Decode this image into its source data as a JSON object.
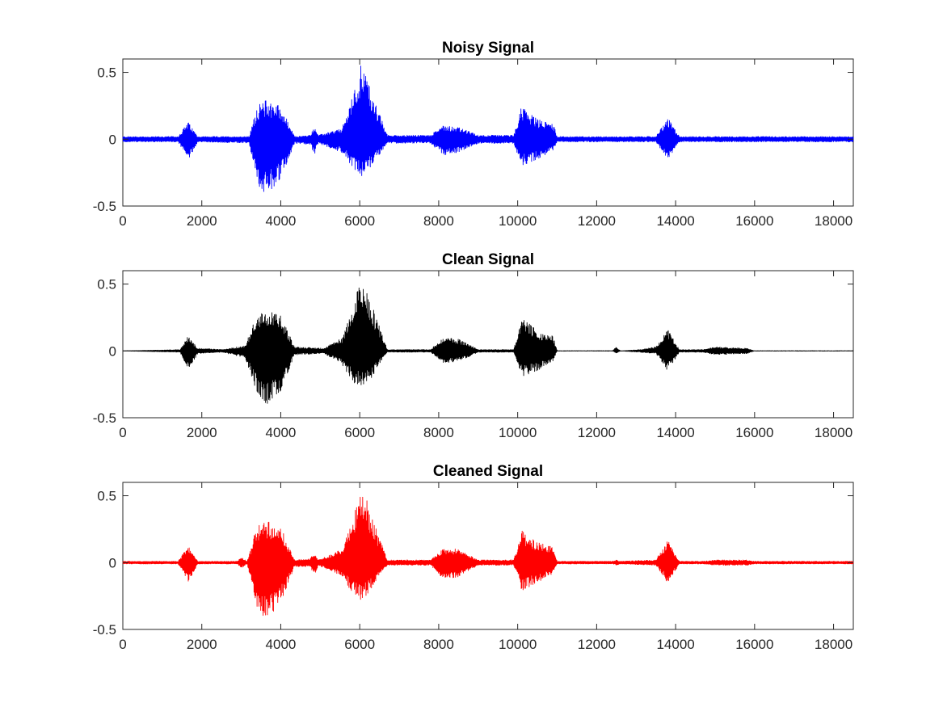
{
  "chart_data": [
    {
      "type": "line",
      "title": "Noisy Signal",
      "color": "#0000ff",
      "xlim": [
        0,
        18500
      ],
      "ylim": [
        -0.5,
        0.6
      ],
      "xticks": [
        0,
        2000,
        4000,
        6000,
        8000,
        10000,
        12000,
        14000,
        16000,
        18000
      ],
      "xtick_labels": [
        "0",
        "2000",
        "4000",
        "6000",
        "8000",
        "10000",
        "12000",
        "14000",
        "16000",
        "18000"
      ],
      "yticks": [
        -0.5,
        0,
        0.5
      ],
      "ytick_labels": [
        "-0.5",
        "0",
        "0.5"
      ],
      "noise_floor": 0.015,
      "envelope": [
        {
          "x": 0,
          "up": 0.02,
          "down": -0.02
        },
        {
          "x": 1400,
          "up": 0.02,
          "down": -0.02
        },
        {
          "x": 1650,
          "up": 0.13,
          "down": -0.16
        },
        {
          "x": 1900,
          "up": 0.02,
          "down": -0.02
        },
        {
          "x": 3200,
          "up": 0.02,
          "down": -0.03
        },
        {
          "x": 3400,
          "up": 0.25,
          "down": -0.33
        },
        {
          "x": 3650,
          "up": 0.3,
          "down": -0.43
        },
        {
          "x": 4000,
          "up": 0.25,
          "down": -0.3
        },
        {
          "x": 4350,
          "up": 0.02,
          "down": -0.03
        },
        {
          "x": 4750,
          "up": 0.03,
          "down": -0.04
        },
        {
          "x": 4850,
          "up": 0.1,
          "down": -0.12
        },
        {
          "x": 4950,
          "up": 0.03,
          "down": -0.03
        },
        {
          "x": 5550,
          "up": 0.08,
          "down": -0.1
        },
        {
          "x": 5850,
          "up": 0.35,
          "down": -0.22
        },
        {
          "x": 6050,
          "up": 0.6,
          "down": -0.28
        },
        {
          "x": 6300,
          "up": 0.35,
          "down": -0.2
        },
        {
          "x": 6700,
          "up": 0.03,
          "down": -0.03
        },
        {
          "x": 7800,
          "up": 0.03,
          "down": -0.03
        },
        {
          "x": 8100,
          "up": 0.11,
          "down": -0.12
        },
        {
          "x": 8500,
          "up": 0.09,
          "down": -0.1
        },
        {
          "x": 9000,
          "up": 0.03,
          "down": -0.03
        },
        {
          "x": 9900,
          "up": 0.03,
          "down": -0.03
        },
        {
          "x": 10100,
          "up": 0.25,
          "down": -0.2
        },
        {
          "x": 10500,
          "up": 0.15,
          "down": -0.15
        },
        {
          "x": 10900,
          "up": 0.12,
          "down": -0.08
        },
        {
          "x": 11000,
          "up": 0.02,
          "down": -0.02
        },
        {
          "x": 13500,
          "up": 0.02,
          "down": -0.02
        },
        {
          "x": 13800,
          "up": 0.16,
          "down": -0.15
        },
        {
          "x": 14100,
          "up": 0.02,
          "down": -0.02
        },
        {
          "x": 18500,
          "up": 0.02,
          "down": -0.02
        }
      ]
    },
    {
      "type": "line",
      "title": "Clean Signal",
      "color": "#000000",
      "xlim": [
        0,
        18500
      ],
      "ylim": [
        -0.5,
        0.6
      ],
      "xticks": [
        0,
        2000,
        4000,
        6000,
        8000,
        10000,
        12000,
        14000,
        16000,
        18000
      ],
      "xtick_labels": [
        "0",
        "2000",
        "4000",
        "6000",
        "8000",
        "10000",
        "12000",
        "14000",
        "16000",
        "18000"
      ],
      "yticks": [
        -0.5,
        0,
        0.5
      ],
      "ytick_labels": [
        "-0.5",
        "0",
        "0.5"
      ],
      "noise_floor": 0.002,
      "envelope": [
        {
          "x": 0,
          "up": 0.0,
          "down": 0.0
        },
        {
          "x": 1450,
          "up": 0.01,
          "down": -0.01
        },
        {
          "x": 1650,
          "up": 0.11,
          "down": -0.15
        },
        {
          "x": 1900,
          "up": 0.02,
          "down": -0.02
        },
        {
          "x": 2500,
          "up": 0.01,
          "down": -0.01
        },
        {
          "x": 3100,
          "up": 0.04,
          "down": -0.05
        },
        {
          "x": 3400,
          "up": 0.28,
          "down": -0.33
        },
        {
          "x": 3650,
          "up": 0.3,
          "down": -0.41
        },
        {
          "x": 4000,
          "up": 0.27,
          "down": -0.3
        },
        {
          "x": 4350,
          "up": 0.03,
          "down": -0.03
        },
        {
          "x": 5100,
          "up": 0.02,
          "down": -0.02
        },
        {
          "x": 5550,
          "up": 0.1,
          "down": -0.1
        },
        {
          "x": 5850,
          "up": 0.35,
          "down": -0.25
        },
        {
          "x": 6050,
          "up": 0.57,
          "down": -0.27
        },
        {
          "x": 6300,
          "up": 0.35,
          "down": -0.2
        },
        {
          "x": 6700,
          "up": 0.01,
          "down": -0.01
        },
        {
          "x": 7800,
          "up": 0.01,
          "down": -0.01
        },
        {
          "x": 8100,
          "up": 0.1,
          "down": -0.09
        },
        {
          "x": 8500,
          "up": 0.09,
          "down": -0.08
        },
        {
          "x": 9000,
          "up": 0.01,
          "down": -0.01
        },
        {
          "x": 9900,
          "up": 0.01,
          "down": -0.01
        },
        {
          "x": 10100,
          "up": 0.25,
          "down": -0.19
        },
        {
          "x": 10500,
          "up": 0.15,
          "down": -0.15
        },
        {
          "x": 10900,
          "up": 0.11,
          "down": -0.08
        },
        {
          "x": 11000,
          "up": 0.0,
          "down": 0.0
        },
        {
          "x": 12400,
          "up": 0.0,
          "down": 0.0
        },
        {
          "x": 12500,
          "up": 0.03,
          "down": -0.02
        },
        {
          "x": 12600,
          "up": 0.0,
          "down": 0.0
        },
        {
          "x": 13100,
          "up": 0.01,
          "down": -0.01
        },
        {
          "x": 13500,
          "up": 0.03,
          "down": -0.02
        },
        {
          "x": 13800,
          "up": 0.16,
          "down": -0.15
        },
        {
          "x": 14100,
          "up": 0.01,
          "down": -0.01
        },
        {
          "x": 14700,
          "up": 0.01,
          "down": -0.01
        },
        {
          "x": 15000,
          "up": 0.03,
          "down": -0.03
        },
        {
          "x": 15800,
          "up": 0.02,
          "down": -0.02
        },
        {
          "x": 16000,
          "up": 0.0,
          "down": 0.0
        },
        {
          "x": 18500,
          "up": 0.0,
          "down": 0.0
        }
      ]
    },
    {
      "type": "line",
      "title": "Cleaned Signal",
      "color": "#ff0000",
      "xlim": [
        0,
        18500
      ],
      "ylim": [
        -0.5,
        0.6
      ],
      "xticks": [
        0,
        2000,
        4000,
        6000,
        8000,
        10000,
        12000,
        14000,
        16000,
        18000
      ],
      "xtick_labels": [
        "0",
        "2000",
        "4000",
        "6000",
        "8000",
        "10000",
        "12000",
        "14000",
        "16000",
        "18000"
      ],
      "yticks": [
        -0.5,
        0,
        0.5
      ],
      "ytick_labels": [
        "-0.5",
        "0",
        "0.5"
      ],
      "noise_floor": 0.008,
      "envelope": [
        {
          "x": 0,
          "up": 0.01,
          "down": -0.01
        },
        {
          "x": 1400,
          "up": 0.01,
          "down": -0.01
        },
        {
          "x": 1650,
          "up": 0.13,
          "down": -0.15
        },
        {
          "x": 1900,
          "up": 0.01,
          "down": -0.01
        },
        {
          "x": 2900,
          "up": 0.01,
          "down": -0.01
        },
        {
          "x": 3000,
          "up": 0.04,
          "down": -0.04
        },
        {
          "x": 3150,
          "up": 0.01,
          "down": -0.01
        },
        {
          "x": 3400,
          "up": 0.28,
          "down": -0.35
        },
        {
          "x": 3650,
          "up": 0.32,
          "down": -0.44
        },
        {
          "x": 4000,
          "up": 0.27,
          "down": -0.3
        },
        {
          "x": 4350,
          "up": 0.02,
          "down": -0.03
        },
        {
          "x": 4750,
          "up": 0.03,
          "down": -0.03
        },
        {
          "x": 4850,
          "up": 0.08,
          "down": -0.1
        },
        {
          "x": 4950,
          "up": 0.02,
          "down": -0.02
        },
        {
          "x": 5550,
          "up": 0.1,
          "down": -0.1
        },
        {
          "x": 5850,
          "up": 0.35,
          "down": -0.25
        },
        {
          "x": 6050,
          "up": 0.61,
          "down": -0.3
        },
        {
          "x": 6300,
          "up": 0.35,
          "down": -0.2
        },
        {
          "x": 6700,
          "up": 0.02,
          "down": -0.02
        },
        {
          "x": 7800,
          "up": 0.02,
          "down": -0.02
        },
        {
          "x": 8100,
          "up": 0.11,
          "down": -0.12
        },
        {
          "x": 8500,
          "up": 0.1,
          "down": -0.11
        },
        {
          "x": 9000,
          "up": 0.02,
          "down": -0.02
        },
        {
          "x": 9900,
          "up": 0.02,
          "down": -0.02
        },
        {
          "x": 10100,
          "up": 0.24,
          "down": -0.21
        },
        {
          "x": 10500,
          "up": 0.15,
          "down": -0.15
        },
        {
          "x": 10900,
          "up": 0.12,
          "down": -0.08
        },
        {
          "x": 11000,
          "up": 0.01,
          "down": -0.01
        },
        {
          "x": 12400,
          "up": 0.01,
          "down": -0.01
        },
        {
          "x": 12500,
          "up": 0.02,
          "down": -0.02
        },
        {
          "x": 12600,
          "up": 0.01,
          "down": -0.01
        },
        {
          "x": 13500,
          "up": 0.02,
          "down": -0.02
        },
        {
          "x": 13800,
          "up": 0.17,
          "down": -0.15
        },
        {
          "x": 14100,
          "up": 0.01,
          "down": -0.01
        },
        {
          "x": 14700,
          "up": 0.01,
          "down": -0.01
        },
        {
          "x": 15000,
          "up": 0.02,
          "down": -0.02
        },
        {
          "x": 15800,
          "up": 0.02,
          "down": -0.02
        },
        {
          "x": 16000,
          "up": 0.01,
          "down": -0.01
        },
        {
          "x": 18500,
          "up": 0.01,
          "down": -0.01
        }
      ]
    }
  ]
}
